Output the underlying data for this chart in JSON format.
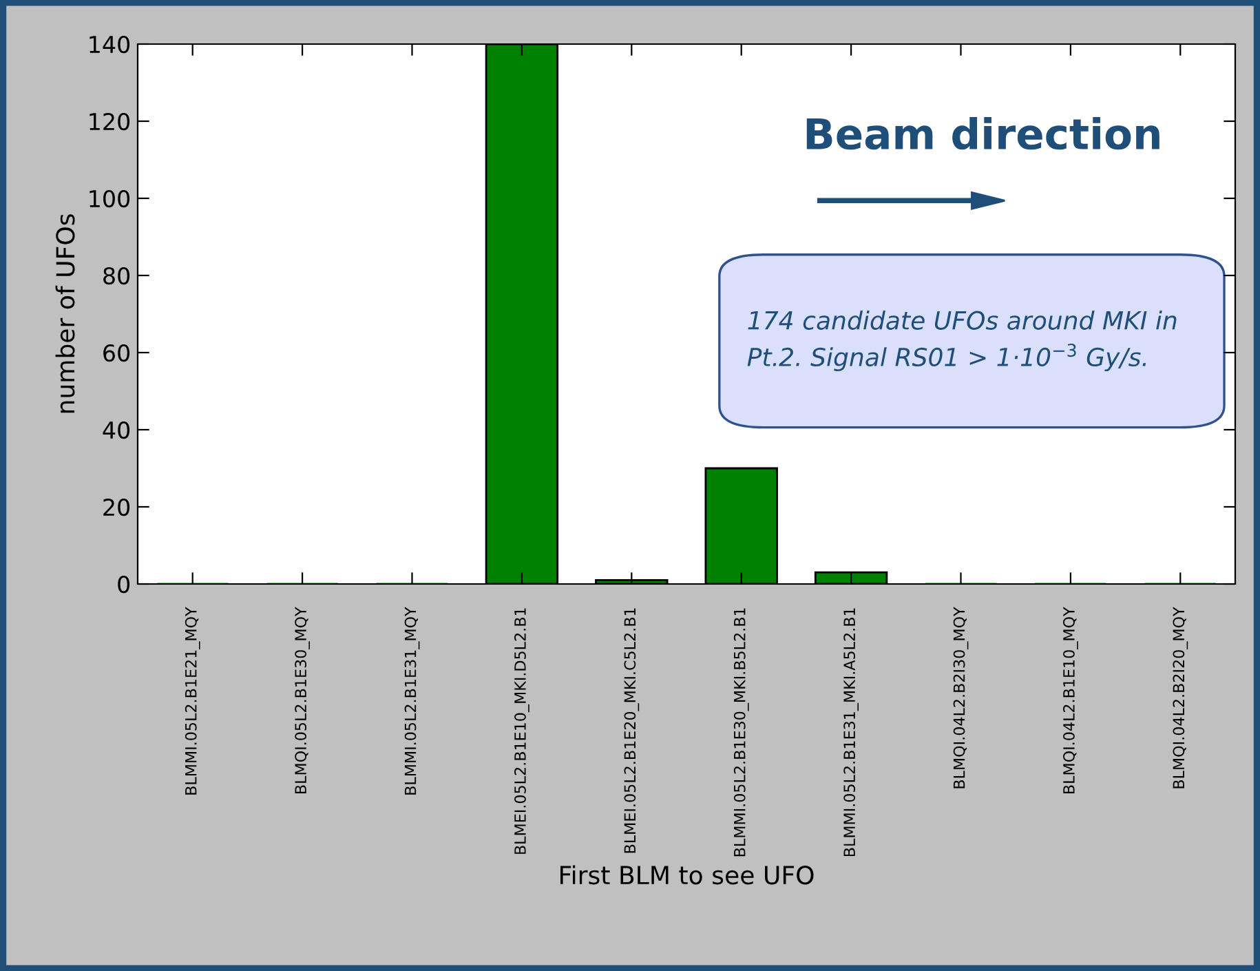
{
  "chart_data": {
    "type": "bar",
    "xlabel": "First BLM to see UFO",
    "ylabel": "number of UFOs",
    "categories": [
      "BLMMI.05L2.B1E21_MQY",
      "BLMQI.05L2.B1E30_MQY",
      "BLMMI.05L2.B1E31_MQY",
      "BLMEI.05L2.B1E10_MKI.D5L2.B1",
      "BLMEI.05L2.B1E20_MKI.C5L2.B1",
      "BLMMI.05L2.B1E30_MKI.B5L2.B1",
      "BLMMI.05L2.B1E31_MKI.A5L2.B1",
      "BLMQI.04L2.B2I30_MQY",
      "BLMQI.04L2.B1E10_MQY",
      "BLMQI.04L2.B2I20_MQY"
    ],
    "values": [
      0,
      0,
      0,
      140,
      1,
      30,
      3,
      0,
      0,
      0
    ],
    "color": "#008000",
    "ylim": [
      0,
      140
    ],
    "yticks": [
      0,
      20,
      40,
      60,
      80,
      100,
      120,
      140
    ],
    "grid": false,
    "annotations": [
      "Beam direction",
      "174 candidate UFOs around MKI in Pt.2. Signal RS01 > 1·10$^{−3}$ Gy/s."
    ]
  }
}
